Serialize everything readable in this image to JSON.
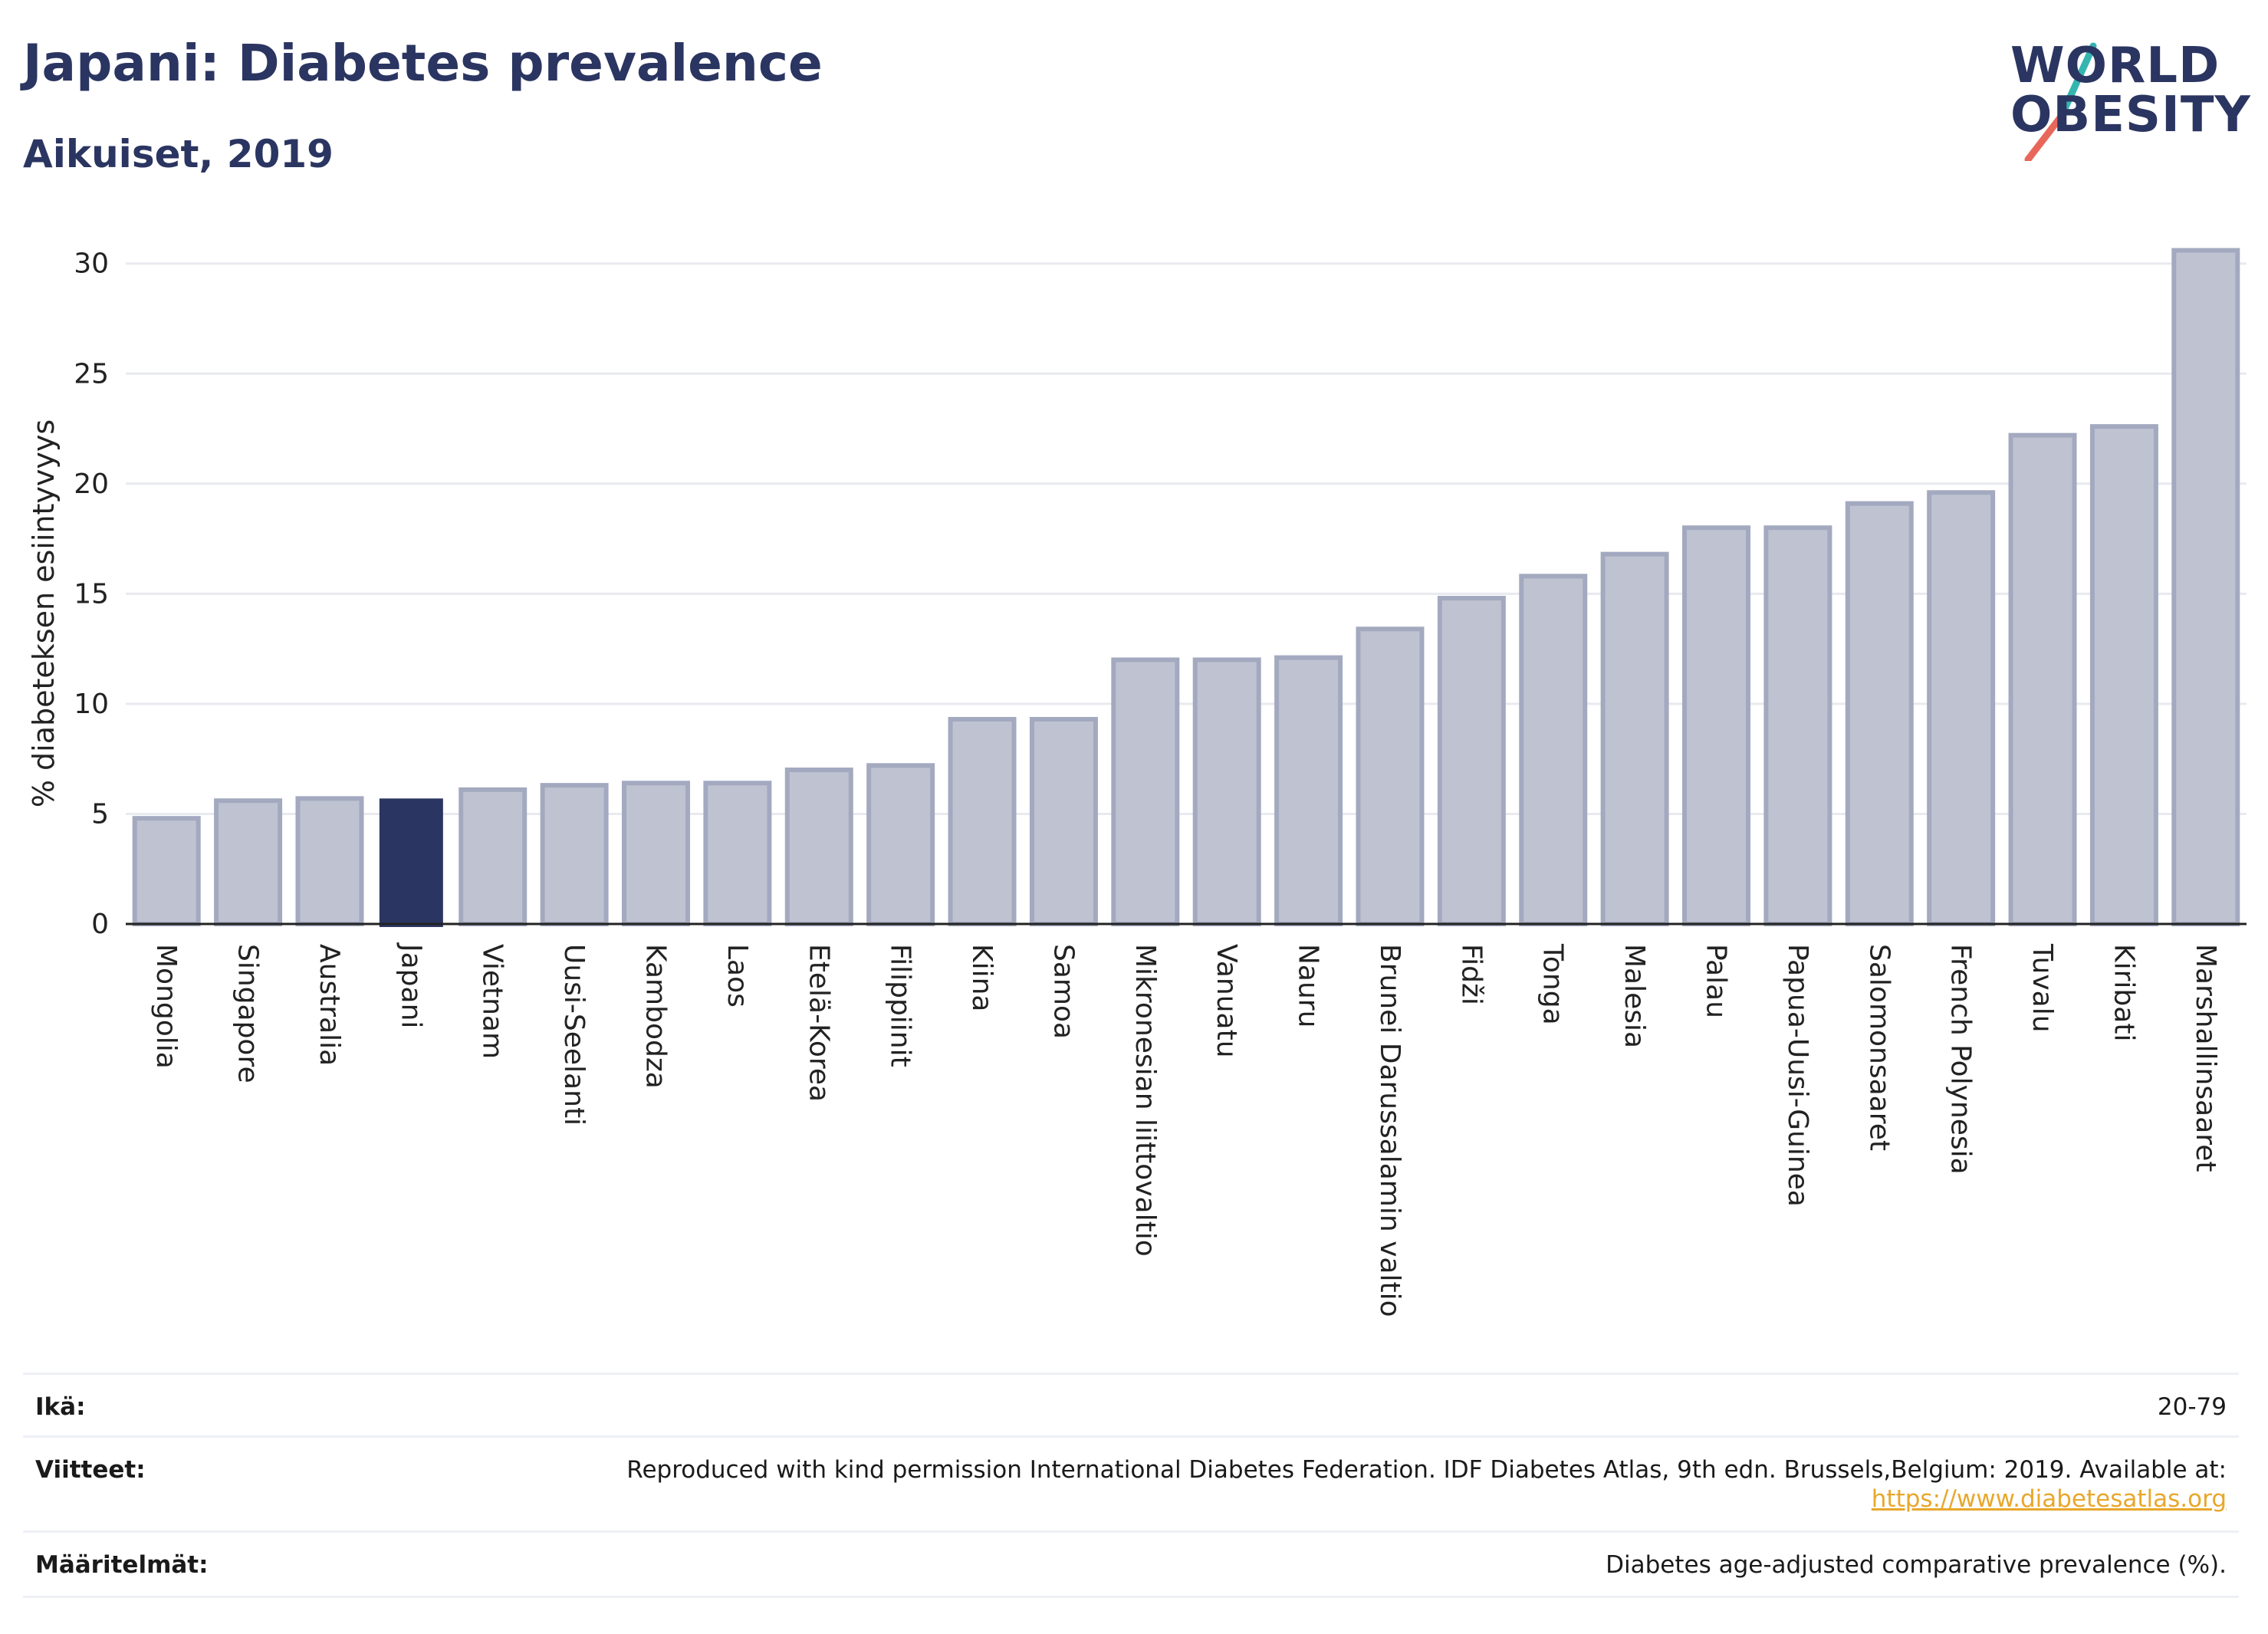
{
  "header": {
    "title": "Japani: Diabetes prevalence",
    "subtitle": "Aikuiset, 2019"
  },
  "logo": {
    "line1": "WORLD",
    "line2": "OBESITY",
    "colors": {
      "text": "#2b3561",
      "slash_top": "#35b5b0",
      "slash_bottom": "#e8675a"
    }
  },
  "colors": {
    "bar_fill": "#bfc3d1",
    "bar_stroke": "#a3a9bf",
    "highlight": "#2b3561",
    "grid": "#e8eaf0",
    "axis": "#222222"
  },
  "chart_data": {
    "type": "bar",
    "ylabel": "% diabeteksen esiintyvyys",
    "xlabel": "",
    "ylim": [
      0,
      31
    ],
    "yticks": [
      0,
      5,
      10,
      15,
      20,
      25,
      30
    ],
    "grid": true,
    "highlight": "Japani",
    "categories": [
      "Mongolia",
      "Singapore",
      "Australia",
      "Japani",
      "Vietnam",
      "Uusi-Seelanti",
      "Kambodza",
      "Laos",
      "Etelä-Korea",
      "Filippiinit",
      "Kiina",
      "Samoa",
      "Mikronesian liittovaltio",
      "Vanuatu",
      "Nauru",
      "Brunei Darussalamin valtio",
      "Fidži",
      "Tonga",
      "Malesia",
      "Palau",
      "Papua-Uusi-Guinea",
      "Salomonsaaret",
      "French Polynesia",
      "Tuvalu",
      "Kiribati",
      "Marshallinsaaret"
    ],
    "values": [
      4.8,
      5.6,
      5.7,
      5.7,
      6.1,
      6.3,
      6.4,
      6.4,
      7.0,
      7.2,
      9.3,
      9.3,
      12.0,
      12.0,
      12.1,
      13.4,
      14.8,
      15.8,
      16.8,
      18.0,
      18.0,
      19.1,
      19.6,
      22.2,
      22.6,
      30.6
    ]
  },
  "footer": {
    "age_label": "Ikä:",
    "age_value": "20-79",
    "refs_label": "Viitteet:",
    "refs_text": "Reproduced with kind permission International Diabetes Federation. IDF Diabetes Atlas, 9th edn. Brussels,Belgium: 2019. Available at:",
    "refs_link": "https://www.diabetesatlas.org",
    "defs_label": "Määritelmät:",
    "defs_value": "Diabetes age-adjusted comparative prevalence (%)."
  }
}
